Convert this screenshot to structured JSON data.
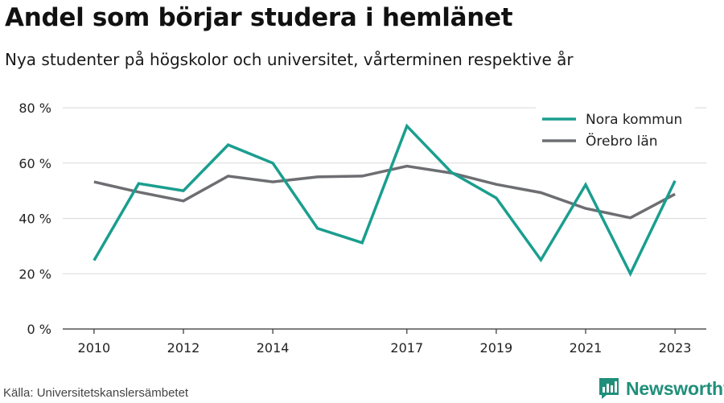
{
  "title": "Andel som börjar studera i hemlänet",
  "subtitle": "Nya studenter på högskolor och universitet, vårterminen respektive år",
  "source": "Källa: Universitetskanslersämbetet",
  "brand": {
    "name": "Newsworthy",
    "logo": "newsworthy-logo-icon",
    "color": "#1f8f7a"
  },
  "chart_data": {
    "type": "line",
    "x": [
      2010,
      2011,
      2012,
      2013,
      2014,
      2015,
      2016,
      2017,
      2018,
      2019,
      2020,
      2021,
      2022,
      2023
    ],
    "x_tick_labels": [
      "2010",
      "2012",
      "2014",
      "2017",
      "2019",
      "2021",
      "2023"
    ],
    "x_tick_values": [
      2010,
      2012,
      2014,
      2017,
      2019,
      2021,
      2023
    ],
    "xlim": [
      2009.3,
      2023.7
    ],
    "ylim": [
      0,
      80
    ],
    "y_ticks": [
      0,
      20,
      40,
      60,
      80
    ],
    "y_tick_labels": [
      "0 %",
      "20 %",
      "40 %",
      "60 %",
      "80 %"
    ],
    "grid": true,
    "legend_position": "top-right",
    "series": [
      {
        "name": "Nora kommun",
        "color": "#1a9e8f",
        "values": [
          24.8,
          52.6,
          50.0,
          66.6,
          60.0,
          36.4,
          31.2,
          73.4,
          56.6,
          47.4,
          25.0,
          52.2,
          20.0,
          53.6
        ]
      },
      {
        "name": "Örebro län",
        "color": "#6d6e72",
        "values": [
          53.2,
          49.5,
          46.3,
          55.3,
          53.2,
          55.0,
          55.3,
          58.9,
          56.4,
          52.3,
          49.3,
          43.6,
          40.2,
          48.8
        ]
      }
    ]
  }
}
